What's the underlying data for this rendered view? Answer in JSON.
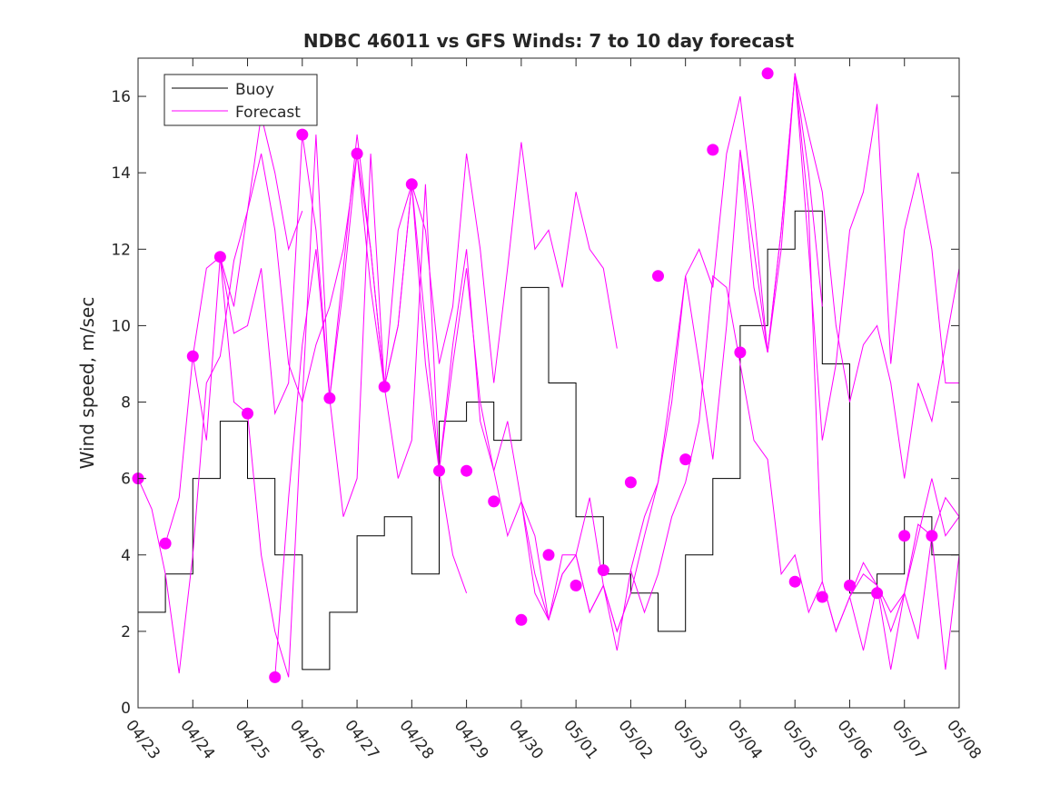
{
  "chart_data": {
    "type": "line",
    "title": "NDBC 46011 vs GFS Winds: 7 to 10 day forecast",
    "xlabel": "",
    "ylabel": "Wind speed, m/sec",
    "x_unit": "date (MM/DD)",
    "xlim": [
      "04/23",
      "05/08"
    ],
    "ylim": [
      0,
      17
    ],
    "x_ticks": [
      "04/23",
      "04/24",
      "04/25",
      "04/26",
      "04/27",
      "04/28",
      "04/29",
      "04/30",
      "05/01",
      "05/02",
      "05/03",
      "05/04",
      "05/05",
      "05/06",
      "05/07",
      "05/08"
    ],
    "y_ticks": [
      0,
      2,
      4,
      6,
      8,
      10,
      12,
      14,
      16
    ],
    "grid": false,
    "legend": {
      "placement": "top-left",
      "entries": [
        "Buoy",
        "Forecast"
      ]
    },
    "colors": {
      "buoy": "#000000",
      "forecast": "#ff00ff"
    },
    "buoy": {
      "name": "Buoy",
      "style": "step, hourly, integer m/s",
      "x": [
        "04/23 00:00",
        "04/23 12:00",
        "04/24 00:00",
        "04/24 12:00",
        "04/25 00:00",
        "04/25 12:00",
        "04/26 00:00",
        "04/26 12:00",
        "04/27 00:00",
        "04/27 12:00",
        "04/28 00:00",
        "04/28 12:00",
        "04/29 00:00",
        "04/29 12:00",
        "04/30 00:00",
        "04/30 12:00",
        "05/01 00:00",
        "05/01 12:00",
        "05/02 00:00",
        "05/02 12:00",
        "05/03 00:00",
        "05/03 12:00",
        "05/04 00:00",
        "05/04 12:00",
        "05/05 00:00",
        "05/05 12:00",
        "05/06 00:00",
        "05/06 12:00",
        "05/07 00:00",
        "05/07 12:00",
        "05/08 00:00"
      ],
      "y": [
        2.5,
        3.5,
        6,
        7.5,
        6,
        4,
        1,
        2.5,
        4.5,
        5,
        3.5,
        7.5,
        8,
        7,
        11,
        8.5,
        5,
        3.5,
        3,
        2,
        4,
        6,
        10,
        12,
        13,
        9,
        3,
        3.5,
        5,
        4,
        2.5
      ]
    },
    "forecast_points": {
      "name": "Forecast",
      "x": [
        "04/23 00:00",
        "04/23 12:00",
        "04/24 00:00",
        "04/24 12:00",
        "04/25 00:00",
        "04/25 12:00",
        "04/26 00:00",
        "04/26 12:00",
        "04/27 00:00",
        "04/27 12:00",
        "04/28 00:00",
        "04/28 12:00",
        "04/29 00:00",
        "04/29 12:00",
        "04/30 00:00",
        "04/30 12:00",
        "05/01 00:00",
        "05/01 12:00",
        "05/02 00:00",
        "05/02 12:00",
        "05/03 00:00",
        "05/03 12:00",
        "05/04 00:00",
        "05/04 12:00",
        "05/05 00:00",
        "05/05 12:00",
        "05/06 00:00",
        "05/06 12:00",
        "05/07 00:00",
        "05/07 12:00"
      ],
      "y": [
        6.0,
        4.3,
        9.2,
        11.8,
        7.7,
        0.8,
        15.0,
        8.1,
        14.5,
        8.4,
        13.7,
        6.2,
        6.2,
        5.4,
        2.3,
        4.0,
        3.2,
        3.6,
        5.9,
        11.3,
        6.5,
        14.6,
        9.3,
        16.6,
        3.3,
        2.9,
        3.2,
        3.0,
        4.5,
        4.5
      ]
    },
    "forecast_runs": [
      {
        "name": "Forecast",
        "x": [
          "04/23 00:00",
          "04/23 06:00",
          "04/23 12:00",
          "04/23 18:00",
          "04/24 00:00",
          "04/24 06:00",
          "04/24 12:00",
          "04/24 18:00",
          "04/25 00:00",
          "04/25 06:00",
          "04/25 12:00",
          "04/25 18:00",
          "04/26 00:00"
        ],
        "y": [
          6.0,
          5.2,
          3.5,
          0.9,
          4.0,
          8.5,
          9.2,
          11.7,
          13.0,
          15.5,
          14.0,
          12.0,
          13.0
        ]
      },
      {
        "name": "Forecast",
        "x": [
          "04/23 12:00",
          "04/23 18:00",
          "04/24 00:00",
          "04/24 06:00",
          "04/24 12:00",
          "04/24 18:00",
          "04/25 00:00",
          "04/25 06:00",
          "04/25 12:00",
          "04/25 18:00",
          "04/26 00:00",
          "04/26 06:00",
          "04/26 12:00",
          "04/26 18:00",
          "04/27 00:00"
        ],
        "y": [
          4.3,
          5.5,
          9.2,
          11.5,
          11.8,
          10.5,
          13.0,
          14.5,
          12.5,
          9.0,
          8.0,
          9.5,
          10.5,
          12.0,
          14.5
        ]
      },
      {
        "name": "Forecast",
        "x": [
          "04/24 00:00",
          "04/24 06:00",
          "04/24 12:00",
          "04/24 18:00",
          "04/25 00:00",
          "04/25 06:00",
          "04/25 12:00",
          "04/25 18:00",
          "04/26 00:00",
          "04/26 06:00",
          "04/26 12:00",
          "04/26 18:00",
          "04/27 00:00",
          "04/27 06:00",
          "04/27 12:00",
          "04/27 18:00",
          "04/28 00:00"
        ],
        "y": [
          9.2,
          7.0,
          11.8,
          9.8,
          10.0,
          11.5,
          7.7,
          8.5,
          15.0,
          12.5,
          8.1,
          11.0,
          14.5,
          12.0,
          8.4,
          10.0,
          13.7
        ]
      },
      {
        "name": "Forecast",
        "x": [
          "04/24 12:00",
          "04/24 18:00",
          "04/25 00:00",
          "04/25 06:00",
          "04/25 12:00",
          "04/25 18:00",
          "04/26 00:00",
          "04/26 06:00",
          "04/26 12:00",
          "04/26 18:00",
          "04/27 00:00",
          "04/27 06:00",
          "04/27 12:00",
          "04/27 18:00",
          "04/28 00:00",
          "04/28 06:00",
          "04/28 12:00",
          "04/28 18:00",
          "04/29 00:00"
        ],
        "y": [
          11.8,
          8.0,
          7.7,
          4.0,
          2.0,
          0.8,
          8.0,
          15.0,
          8.1,
          5.0,
          6.0,
          14.5,
          8.4,
          6.0,
          7.0,
          13.7,
          6.2,
          4.0,
          3.0
        ]
      },
      {
        "name": "Forecast",
        "x": [
          "04/25 12:00",
          "04/25 18:00",
          "04/26 00:00",
          "04/26 06:00",
          "04/26 12:00",
          "04/26 18:00",
          "04/27 00:00",
          "04/27 06:00",
          "04/27 12:00",
          "04/27 18:00",
          "04/28 00:00",
          "04/28 06:00",
          "04/28 12:00",
          "04/28 18:00",
          "04/29 00:00",
          "04/29 06:00",
          "04/29 12:00",
          "04/29 18:00",
          "04/30 00:00",
          "04/30 06:00",
          "04/30 12:00",
          "04/30 18:00",
          "05/01 00:00",
          "05/01 06:00",
          "05/01 12:00",
          "05/01 18:00",
          "05/02 00:00"
        ],
        "y": [
          0.8,
          5.5,
          9.5,
          12.0,
          8.1,
          11.5,
          15.0,
          12.0,
          8.4,
          10.0,
          13.7,
          9.0,
          6.2,
          9.5,
          12.0,
          7.5,
          6.2,
          4.5,
          5.4,
          3.0,
          2.3,
          3.5,
          4.0,
          2.5,
          3.2,
          2.0,
          3.0
        ]
      },
      {
        "name": "Forecast",
        "x": [
          "04/27 00:00",
          "04/27 06:00",
          "04/27 12:00",
          "04/27 18:00",
          "04/28 00:00",
          "04/28 06:00",
          "04/28 12:00",
          "04/28 18:00",
          "04/29 00:00",
          "04/29 06:00",
          "04/29 12:00",
          "04/29 18:00",
          "04/30 00:00",
          "04/30 06:00",
          "04/30 12:00",
          "04/30 18:00",
          "05/01 00:00",
          "05/01 06:00",
          "05/01 12:00",
          "05/01 18:00",
          "05/02 00:00",
          "05/02 06:00",
          "05/02 12:00",
          "05/02 18:00",
          "05/03 00:00"
        ],
        "y": [
          14.5,
          11.0,
          8.4,
          12.5,
          13.7,
          10.0,
          6.2,
          9.0,
          11.5,
          8.0,
          6.2,
          7.5,
          5.4,
          4.5,
          2.3,
          3.5,
          4.0,
          5.5,
          3.2,
          2.0,
          3.0,
          4.5,
          5.9,
          8.0,
          11.3
        ]
      },
      {
        "name": "Forecast",
        "x": [
          "04/28 00:00",
          "04/28 06:00",
          "04/28 12:00",
          "04/28 18:00",
          "04/29 00:00",
          "04/29 06:00",
          "04/29 12:00",
          "04/29 18:00",
          "04/30 00:00",
          "04/30 06:00",
          "04/30 12:00",
          "04/30 18:00",
          "05/01 00:00",
          "05/01 06:00",
          "05/01 12:00",
          "05/01 18:00"
        ],
        "y": [
          13.7,
          12.5,
          9.0,
          10.5,
          14.5,
          12.0,
          8.5,
          11.5,
          14.8,
          12.0,
          12.5,
          11.0,
          13.5,
          12.0,
          11.5,
          9.4
        ]
      },
      {
        "name": "Forecast",
        "x": [
          "04/30 00:00",
          "04/30 06:00",
          "04/30 12:00",
          "04/30 18:00",
          "05/01 00:00",
          "05/01 06:00",
          "05/01 12:00",
          "05/01 18:00",
          "05/02 00:00",
          "05/02 06:00",
          "05/02 12:00",
          "05/02 18:00",
          "05/03 00:00",
          "05/03 06:00",
          "05/03 12:00",
          "05/03 18:00",
          "05/04 00:00",
          "05/04 06:00",
          "05/04 12:00",
          "05/04 18:00",
          "05/05 00:00",
          "05/05 06:00",
          "05/05 12:00"
        ],
        "y": [
          5.4,
          3.5,
          2.3,
          4.0,
          4.0,
          2.5,
          3.2,
          1.5,
          3.6,
          5.0,
          5.9,
          8.5,
          11.3,
          9.0,
          6.5,
          10.0,
          14.6,
          12.0,
          9.3,
          12.5,
          16.6,
          14.0,
          10.5
        ]
      },
      {
        "name": "Forecast",
        "x": [
          "05/02 00:00",
          "05/02 06:00",
          "05/02 12:00",
          "05/02 18:00",
          "05/03 00:00",
          "05/03 06:00",
          "05/03 12:00",
          "05/03 18:00",
          "05/04 00:00",
          "05/04 06:00",
          "05/04 12:00",
          "05/04 18:00",
          "05/05 00:00",
          "05/05 06:00",
          "05/05 12:00",
          "05/05 18:00",
          "05/06 00:00",
          "05/06 06:00",
          "05/06 12:00",
          "05/06 18:00",
          "05/07 00:00",
          "05/07 06:00",
          "05/07 12:00",
          "05/07 18:00",
          "05/08 00:00"
        ],
        "y": [
          3.6,
          2.5,
          3.5,
          5.0,
          5.9,
          7.5,
          11.3,
          11.0,
          9.0,
          7.0,
          6.5,
          3.5,
          4.0,
          2.5,
          3.3,
          2.0,
          2.9,
          3.5,
          3.2,
          2.0,
          3.0,
          4.5,
          6.0,
          4.5,
          5.0
        ]
      },
      {
        "name": "Forecast",
        "x": [
          "05/03 00:00",
          "05/03 06:00",
          "05/03 12:00",
          "05/03 18:00",
          "05/04 00:00",
          "05/04 06:00",
          "05/04 12:00",
          "05/04 18:00",
          "05/05 00:00",
          "05/05 06:00",
          "05/05 12:00",
          "05/05 18:00",
          "05/06 00:00",
          "05/06 06:00",
          "05/06 12:00",
          "05/06 18:00",
          "05/07 00:00",
          "05/07 06:00",
          "05/07 12:00",
          "05/07 18:00",
          "05/08 00:00"
        ],
        "y": [
          11.3,
          12.0,
          11.0,
          14.5,
          16.0,
          13.0,
          9.3,
          12.0,
          16.6,
          15.0,
          13.5,
          10.0,
          8.0,
          9.5,
          10.0,
          8.5,
          6.0,
          8.5,
          7.5,
          9.5,
          11.5
        ]
      },
      {
        "name": "Forecast",
        "x": [
          "05/04 00:00",
          "05/04 06:00",
          "05/04 12:00",
          "05/04 18:00",
          "05/05 00:00",
          "05/05 06:00",
          "05/05 12:00",
          "05/05 18:00",
          "05/06 00:00",
          "05/06 06:00",
          "05/06 12:00",
          "05/06 18:00",
          "05/07 00:00",
          "05/07 06:00",
          "05/07 12:00",
          "05/07 18:00",
          "05/08 00:00"
        ],
        "y": [
          14.6,
          11.0,
          9.3,
          12.5,
          16.6,
          12.0,
          7.0,
          9.0,
          12.5,
          13.5,
          15.8,
          9.0,
          12.5,
          14.0,
          12.0,
          8.5,
          8.5
        ]
      },
      {
        "name": "Forecast",
        "x": [
          "05/05 00:00",
          "05/05 06:00",
          "05/05 12:00",
          "05/05 18:00",
          "05/06 00:00",
          "05/06 06:00",
          "05/06 12:00",
          "05/06 18:00",
          "05/07 00:00",
          "05/07 06:00",
          "05/07 12:00",
          "05/07 18:00",
          "05/08 00:00"
        ],
        "y": [
          16.6,
          13.0,
          3.3,
          2.0,
          2.9,
          1.5,
          3.2,
          1.0,
          3.0,
          1.8,
          4.5,
          1.0,
          4.0
        ]
      },
      {
        "name": "Forecast",
        "x": [
          "05/06 00:00",
          "05/06 06:00",
          "05/06 12:00",
          "05/06 18:00",
          "05/07 00:00",
          "05/07 06:00",
          "05/07 12:00",
          "05/07 18:00",
          "05/08 00:00"
        ],
        "y": [
          2.9,
          3.8,
          3.2,
          2.5,
          3.0,
          4.8,
          4.5,
          5.5,
          5.0
        ]
      }
    ]
  }
}
